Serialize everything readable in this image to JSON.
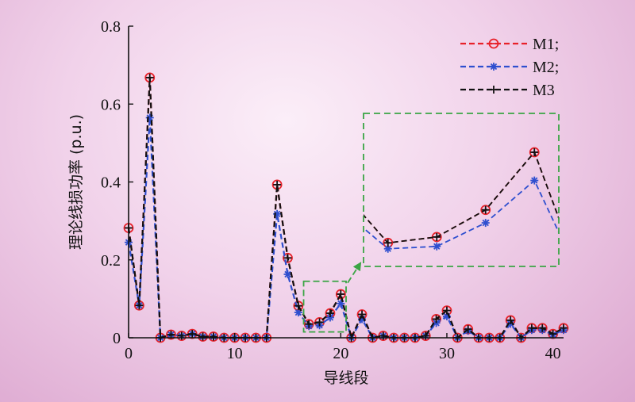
{
  "chart_data": {
    "type": "line",
    "title": "",
    "xlabel": "导线段",
    "ylabel": "理论线损功率 (p.u.)",
    "xlim": [
      0,
      41
    ],
    "ylim": [
      0,
      0.8
    ],
    "xticks": [
      "0",
      "10",
      "20",
      "30",
      "40"
    ],
    "yticks": [
      "0",
      "0.2",
      "0.4",
      "0.6",
      "0.8"
    ],
    "grid": false,
    "legend_position": "top-right",
    "x": [
      0,
      1,
      2,
      3,
      4,
      5,
      6,
      7,
      8,
      9,
      10,
      11,
      12,
      13,
      14,
      15,
      16,
      17,
      18,
      19,
      20,
      21,
      22,
      23,
      24,
      25,
      26,
      27,
      28,
      29,
      30,
      31,
      32,
      33,
      34,
      35,
      36,
      37,
      38,
      39,
      40,
      41
    ],
    "series": [
      {
        "name": "M1;",
        "color": "#e8212a",
        "marker": "circle-minus",
        "values": [
          0.282,
          0.083,
          0.668,
          0,
          0.008,
          0.005,
          0.01,
          0.003,
          0.003,
          0,
          0,
          0,
          0,
          0,
          0.393,
          0.205,
          0.082,
          0.035,
          0.04,
          0.063,
          0.112,
          0,
          0.06,
          0,
          0.005,
          0,
          0,
          0,
          0.005,
          0.048,
          0.07,
          0,
          0.022,
          0,
          0,
          0,
          0.045,
          0,
          0.025,
          0.025,
          0.01,
          0.025
        ]
      },
      {
        "name": "M2;",
        "color": "#2f4fcf",
        "marker": "star",
        "values": [
          0.245,
          0.083,
          0.565,
          0,
          0.008,
          0.005,
          0.01,
          0.003,
          0.003,
          0,
          0,
          0,
          0,
          0,
          0.318,
          0.163,
          0.065,
          0.03,
          0.032,
          0.052,
          0.088,
          0,
          0.048,
          0,
          0.005,
          0,
          0,
          0,
          0.005,
          0.038,
          0.055,
          0,
          0.018,
          0,
          0,
          0,
          0.036,
          0,
          0.02,
          0.02,
          0.008,
          0.02
        ]
      },
      {
        "name": "M3",
        "color": "#111111",
        "marker": "plus",
        "values": [
          0.282,
          0.083,
          0.668,
          0,
          0.008,
          0.005,
          0.01,
          0.003,
          0.003,
          0,
          0,
          0,
          0,
          0,
          0.393,
          0.205,
          0.082,
          0.035,
          0.04,
          0.063,
          0.112,
          0,
          0.06,
          0,
          0.005,
          0,
          0,
          0,
          0.005,
          0.048,
          0.07,
          0,
          0.022,
          0,
          0,
          0,
          0.045,
          0,
          0.025,
          0.025,
          0.01,
          0.025
        ]
      }
    ],
    "inset": {
      "xlim": [
        16.5,
        20.5
      ],
      "ylim": [
        0.015,
        0.145
      ],
      "highlight_color": "#3aa544"
    }
  }
}
